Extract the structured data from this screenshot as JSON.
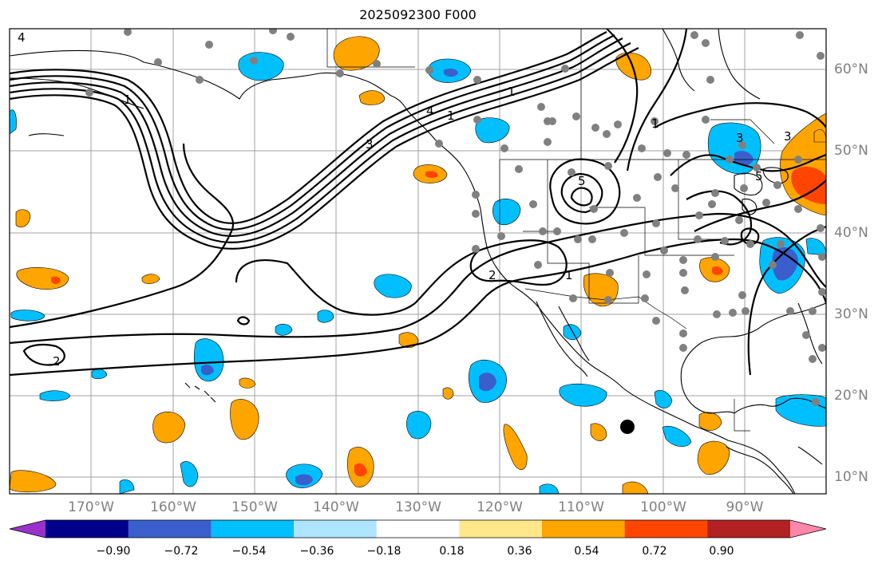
{
  "title": "2025092300 F000",
  "map": {
    "longitude_labels": [
      "170°W",
      "160°W",
      "150°W",
      "140°W",
      "130°W",
      "120°W",
      "110°W",
      "100°W",
      "90°W"
    ],
    "latitude_labels": [
      "60°N",
      "50°N",
      "40°N",
      "30°N",
      "20°N",
      "10°N"
    ],
    "contour_labels": [
      "1",
      "1",
      "1",
      "1",
      "2",
      "2",
      "3",
      "3",
      "4",
      "4",
      "5",
      "5",
      "1",
      "3"
    ],
    "colors": {
      "land_lines": "#000000",
      "grid": "#a0a0a0",
      "station_dots": "#808080",
      "marker": "#000000"
    }
  },
  "colorbar": {
    "tick_labels": [
      "−0.90",
      "−0.72",
      "−0.54",
      "−0.36",
      "−0.18",
      "0.18",
      "0.36",
      "0.54",
      "0.72",
      "0.90"
    ],
    "colors": [
      "#9932CC",
      "#00008B",
      "#3A5FCD",
      "#00BFFF",
      "#ADE4FF",
      "#FFFFFF",
      "#FFE78A",
      "#FFA500",
      "#FF4500",
      "#B22222",
      "#FF88AA"
    ]
  }
}
